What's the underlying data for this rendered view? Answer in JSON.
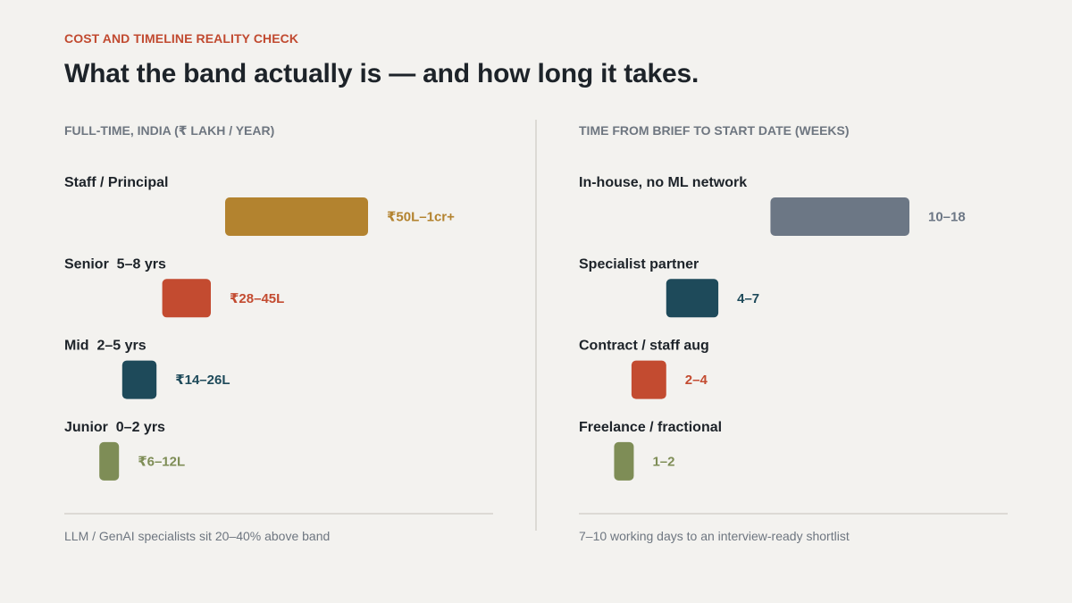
{
  "header": {
    "eyebrow": "COST AND TIMELINE REALITY CHECK",
    "title": "What the band actually is — and how long it takes."
  },
  "chart_data": [
    {
      "type": "bar",
      "title": "FULL-TIME, INDIA (₹ LAKH / YEAR)",
      "categories": [
        "Staff / Principal",
        "Senior  5–8 yrs",
        "Mid  2–5 yrs",
        "Junior  0–2 yrs"
      ],
      "ranges": [
        [
          50,
          100
        ],
        [
          28,
          45
        ],
        [
          14,
          26
        ],
        [
          6,
          12
        ]
      ],
      "value_labels": [
        "₹50L–1cr+",
        "₹28–45L",
        "₹14–26L",
        "₹6–12L"
      ],
      "colors": [
        "#b3832f",
        "#c34b30",
        "#1e4a5a",
        "#7e8d56"
      ],
      "xlim": [
        0,
        100
      ],
      "footnote": "LLM / GenAI specialists sit 20–40% above band"
    },
    {
      "type": "bar",
      "title": "TIME FROM BRIEF TO START DATE (WEEKS)",
      "categories": [
        "In-house, no ML network",
        "Specialist partner",
        "Contract / staff aug",
        "Freelance / fractional"
      ],
      "ranges": [
        [
          10,
          18
        ],
        [
          4,
          7
        ],
        [
          2,
          4
        ],
        [
          1,
          2
        ]
      ],
      "value_labels": [
        "10–18",
        "4–7",
        "2–4",
        "1–2"
      ],
      "colors": [
        "#6c7785",
        "#1e4a5a",
        "#c34b30",
        "#7e8d56"
      ],
      "xlim": [
        0,
        18
      ],
      "footnote": "7–10 working days to an interview-ready shortlist"
    }
  ]
}
